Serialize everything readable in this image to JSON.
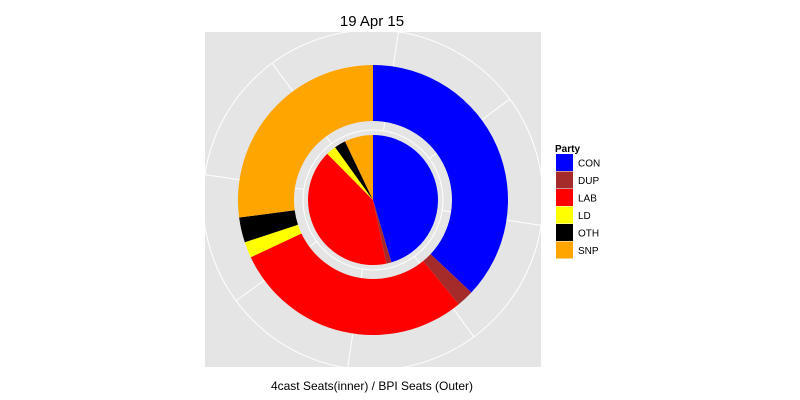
{
  "chart_data": {
    "type": "pie",
    "title": "19 Apr 15",
    "xlabel": "4cast Seats(inner) / BPI Seats (Outer)",
    "ylabel": "",
    "legend": {
      "title": "Party",
      "placement": "right",
      "entries": [
        {
          "label": "CON",
          "color": "#0000FF"
        },
        {
          "label": "DUP",
          "color": "#A52A2A"
        },
        {
          "label": "LAB",
          "color": "#FF0000"
        },
        {
          "label": "LD",
          "color": "#FFFF00"
        },
        {
          "label": "OTH",
          "color": "#000000"
        },
        {
          "label": "SNP",
          "color": "#FFA500"
        }
      ]
    },
    "categories": [
      "CON",
      "DUP",
      "LAB",
      "LD",
      "OTH",
      "SNP"
    ],
    "series": [
      {
        "name": "4cast Seats",
        "ring": "inner",
        "values": [
          289,
          8,
          260,
          16,
          18,
          45
        ]
      },
      {
        "name": "BPI Seats",
        "ring": "outer",
        "values": [
          272,
          15,
          213,
          14,
          22,
          199
        ]
      }
    ],
    "grid": true,
    "panel_background": "#E5E5E5"
  }
}
